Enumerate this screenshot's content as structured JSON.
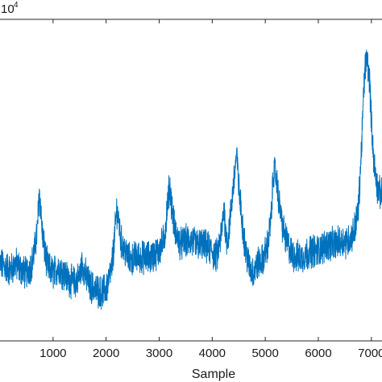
{
  "chart_data": {
    "type": "line",
    "title": "",
    "xlabel": "Sample",
    "ylabel": "",
    "y_exponent_label": "10",
    "y_exponent_power": "4",
    "xlim": [
      0,
      7200
    ],
    "ylim": [
      0.0,
      1.0
    ],
    "xticks": [
      1000,
      2000,
      3000,
      4000,
      5000,
      6000,
      7000
    ],
    "xtick_labels": [
      "1000",
      "2000",
      "3000",
      "4000",
      "5000",
      "6000",
      "7000"
    ],
    "grid": false,
    "legend": "none",
    "series": [
      {
        "color": "#0072BD",
        "noise": 0.045,
        "points": [
          [
            0,
            0.24
          ],
          [
            100,
            0.23
          ],
          [
            200,
            0.22
          ],
          [
            300,
            0.24
          ],
          [
            400,
            0.22
          ],
          [
            500,
            0.21
          ],
          [
            600,
            0.24
          ],
          [
            650,
            0.28
          ],
          [
            700,
            0.34
          ],
          [
            740,
            0.46
          ],
          [
            760,
            0.43
          ],
          [
            800,
            0.33
          ],
          [
            850,
            0.27
          ],
          [
            900,
            0.23
          ],
          [
            1000,
            0.21
          ],
          [
            1100,
            0.23
          ],
          [
            1200,
            0.21
          ],
          [
            1300,
            0.19
          ],
          [
            1400,
            0.18
          ],
          [
            1500,
            0.2
          ],
          [
            1550,
            0.24
          ],
          [
            1600,
            0.21
          ],
          [
            1700,
            0.17
          ],
          [
            1800,
            0.16
          ],
          [
            1900,
            0.15
          ],
          [
            2000,
            0.16
          ],
          [
            2100,
            0.22
          ],
          [
            2150,
            0.3
          ],
          [
            2200,
            0.41
          ],
          [
            2230,
            0.38
          ],
          [
            2280,
            0.31
          ],
          [
            2350,
            0.28
          ],
          [
            2450,
            0.25
          ],
          [
            2550,
            0.26
          ],
          [
            2700,
            0.26
          ],
          [
            2850,
            0.26
          ],
          [
            3000,
            0.28
          ],
          [
            3100,
            0.32
          ],
          [
            3170,
            0.45
          ],
          [
            3200,
            0.48
          ],
          [
            3250,
            0.4
          ],
          [
            3300,
            0.34
          ],
          [
            3400,
            0.3
          ],
          [
            3500,
            0.31
          ],
          [
            3600,
            0.31
          ],
          [
            3700,
            0.3
          ],
          [
            3800,
            0.3
          ],
          [
            3900,
            0.29
          ],
          [
            4000,
            0.28
          ],
          [
            4050,
            0.26
          ],
          [
            4100,
            0.27
          ],
          [
            4180,
            0.34
          ],
          [
            4220,
            0.42
          ],
          [
            4260,
            0.32
          ],
          [
            4300,
            0.32
          ],
          [
            4350,
            0.4
          ],
          [
            4420,
            0.52
          ],
          [
            4460,
            0.58
          ],
          [
            4500,
            0.48
          ],
          [
            4560,
            0.38
          ],
          [
            4620,
            0.29
          ],
          [
            4700,
            0.23
          ],
          [
            4780,
            0.21
          ],
          [
            4850,
            0.24
          ],
          [
            4950,
            0.25
          ],
          [
            5050,
            0.3
          ],
          [
            5120,
            0.4
          ],
          [
            5150,
            0.53
          ],
          [
            5200,
            0.52
          ],
          [
            5260,
            0.43
          ],
          [
            5330,
            0.35
          ],
          [
            5400,
            0.31
          ],
          [
            5500,
            0.27
          ],
          [
            5600,
            0.26
          ],
          [
            5700,
            0.26
          ],
          [
            5850,
            0.28
          ],
          [
            6000,
            0.28
          ],
          [
            6150,
            0.3
          ],
          [
            6300,
            0.3
          ],
          [
            6450,
            0.31
          ],
          [
            6550,
            0.31
          ],
          [
            6650,
            0.33
          ],
          [
            6750,
            0.4
          ],
          [
            6800,
            0.55
          ],
          [
            6850,
            0.75
          ],
          [
            6880,
            0.85
          ],
          [
            6920,
            0.88
          ],
          [
            6970,
            0.8
          ],
          [
            7000,
            0.68
          ],
          [
            7050,
            0.55
          ],
          [
            7120,
            0.47
          ],
          [
            7200,
            0.45
          ]
        ]
      }
    ]
  }
}
